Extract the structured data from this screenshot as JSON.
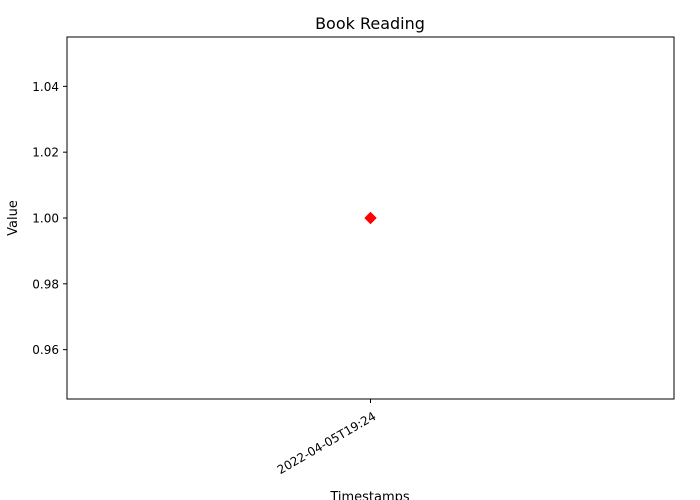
{
  "chart_data": {
    "type": "scatter",
    "title": "Book Reading",
    "xlabel": "Timestamps",
    "ylabel": "Value",
    "x": [
      "2022-04-05T19:24"
    ],
    "series": [
      {
        "values": [
          1.0
        ],
        "color": "#ff0000",
        "marker": "diamond"
      }
    ],
    "ylim": [
      0.945,
      1.055
    ],
    "yticks": [
      0.96,
      0.98,
      1.0,
      1.02,
      1.04
    ],
    "ytick_labels": [
      "0.96",
      "0.98",
      "1.00",
      "1.02",
      "1.04"
    ],
    "xtick_labels": [
      "2022-04-05T19:24"
    ],
    "grid": false,
    "legend": false
  }
}
